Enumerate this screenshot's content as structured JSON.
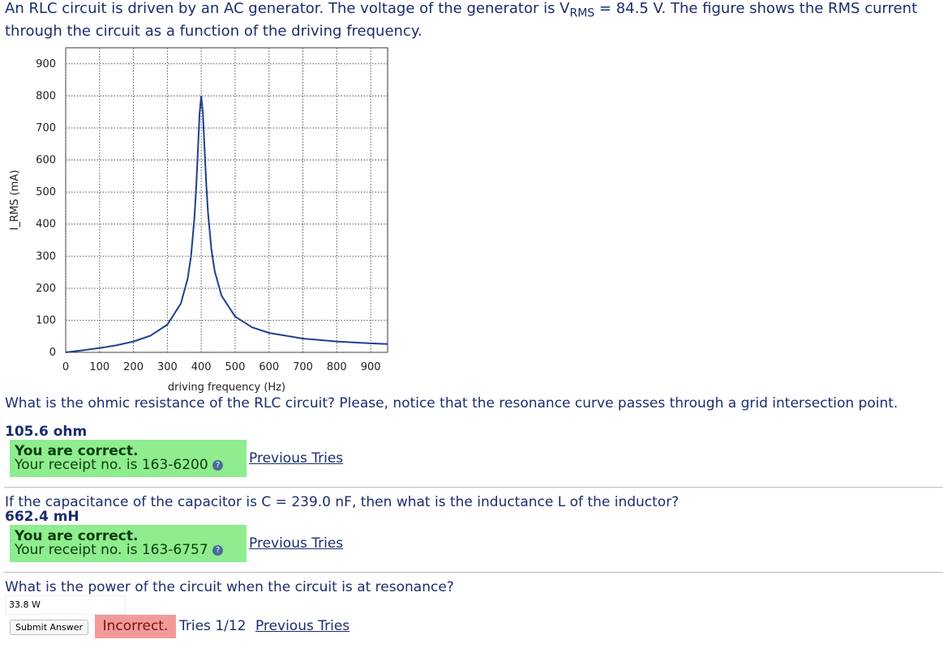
{
  "intro": {
    "before": "An RLC circuit is driven by an AC generator. The voltage of the generator is V",
    "subscript": "RMS",
    "after": " = 84.5 V. The figure shows the RMS current through the circuit as a function of the driving frequency."
  },
  "chart_data": {
    "type": "line",
    "x_label": "driving frequency (Hz)",
    "y_label": "I_RMS (mA)",
    "x": [
      0,
      10,
      25,
      50,
      100,
      150,
      200,
      250,
      300,
      340,
      360,
      370,
      380,
      385,
      390,
      395,
      400,
      405,
      410,
      415,
      420,
      430,
      440,
      460,
      500,
      550,
      600,
      700,
      800,
      900,
      950
    ],
    "series": [
      {
        "color": "#1f3f8f",
        "values": [
          0,
          1.3,
          3.2,
          6.4,
          13.5,
          22.1,
          33.8,
          52,
          86.5,
          152.5,
          230,
          301,
          421,
          511,
          625,
          744,
          800,
          744,
          631,
          522,
          436,
          321,
          252,
          176.5,
          111.7,
          78,
          60.7,
          43,
          33.8,
          28.1,
          26
        ]
      }
    ],
    "xlim": [
      0,
      950
    ],
    "ylim": [
      0,
      950
    ],
    "xticks": [
      0,
      100,
      200,
      300,
      400,
      500,
      600,
      700,
      800,
      900
    ],
    "yticks": [
      0,
      100,
      200,
      300,
      400,
      500,
      600,
      700,
      800,
      900
    ],
    "grid": true
  },
  "questions": [
    {
      "prompt": "What is the ohmic resistance of the RLC circuit? Please, notice that the resonance curve passes through a grid intersection point.",
      "answer": "105.6 ohm",
      "status": "You are correct.",
      "receipt": "Your receipt no. is 163-6200",
      "link": "Previous Tries"
    },
    {
      "prompt": "If the capacitance of the capacitor is C = 239.0 nF, then what is the inductance L of the inductor?",
      "answer": "662.4 mH",
      "status": "You are correct.",
      "receipt": "Your receipt no. is 163-6757",
      "link": "Previous Tries"
    },
    {
      "prompt": "What is the power of the circuit when the circuit is at resonance?",
      "input": "33.8 W",
      "button": "Submit Answer",
      "status": "Incorrect.",
      "tries": "Tries 1/12",
      "link": "Previous Tries"
    }
  ]
}
